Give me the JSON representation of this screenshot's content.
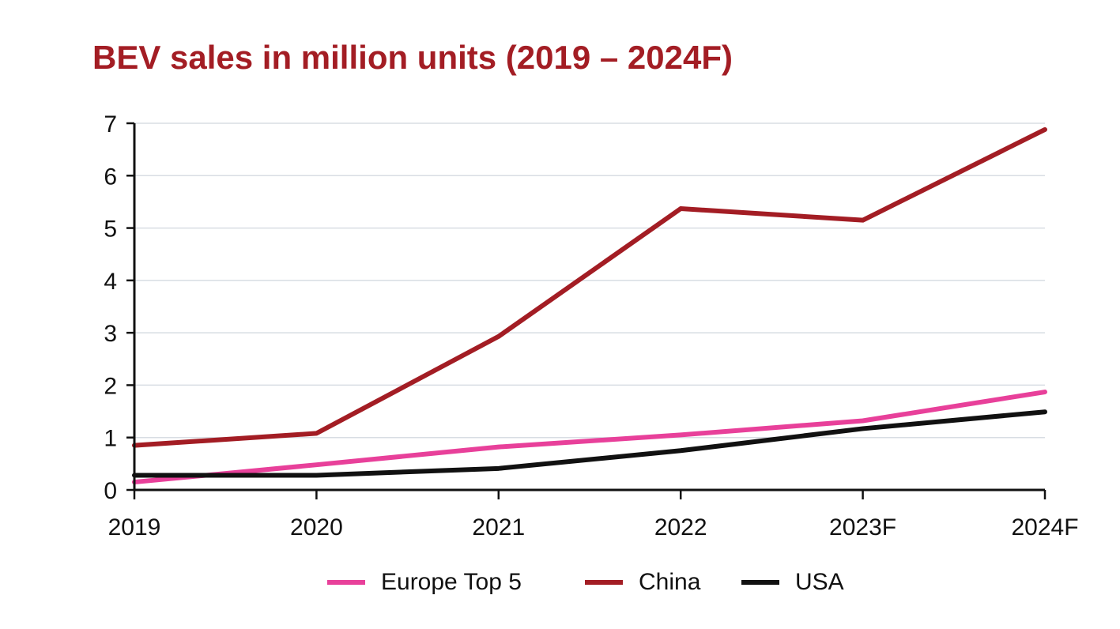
{
  "chart_data": {
    "type": "line",
    "title": "BEV sales in million units (2019 – 2024F)",
    "xlabel": "",
    "ylabel": "",
    "categories": [
      "2019",
      "2020",
      "2021",
      "2022",
      "2023F",
      "2024F"
    ],
    "ylim": [
      0,
      7
    ],
    "yticks": [
      "0",
      "1",
      "2",
      "3",
      "4",
      "5",
      "6",
      "7"
    ],
    "grid": true,
    "legend_position": "bottom",
    "series": [
      {
        "name": "Europe Top 5",
        "color": "#e8409a",
        "values": [
          0.15,
          0.48,
          0.82,
          1.05,
          1.32,
          1.87
        ]
      },
      {
        "name": "China",
        "color": "#a31d24",
        "values": [
          0.85,
          1.08,
          2.93,
          5.37,
          5.15,
          6.88
        ]
      },
      {
        "name": "USA",
        "color": "#111111",
        "values": [
          0.28,
          0.28,
          0.41,
          0.75,
          1.17,
          1.49
        ]
      }
    ]
  },
  "colors": {
    "title": "#a31d24",
    "axis": "#111111",
    "grid": "#d8dde3"
  }
}
